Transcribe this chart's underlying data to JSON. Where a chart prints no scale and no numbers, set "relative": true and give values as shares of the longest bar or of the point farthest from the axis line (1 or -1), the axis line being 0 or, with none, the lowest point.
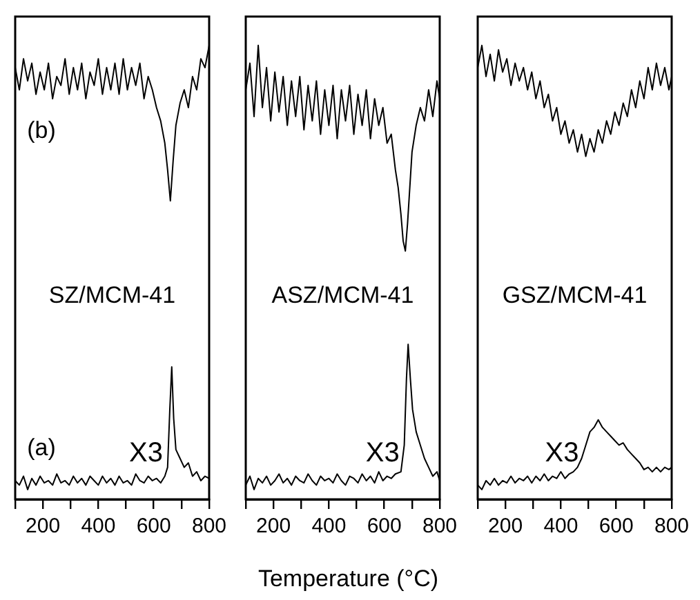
{
  "chart_data": [
    {
      "type": "line",
      "xlim": [
        100,
        800
      ],
      "xticks": [
        {
          "value": 100,
          "label": null
        },
        200,
        {
          "value": 300,
          "label": null
        },
        400,
        {
          "value": 500,
          "label": null
        },
        600,
        {
          "value": 700,
          "label": null
        },
        800
      ],
      "relative": true,
      "title": "SZ/MCM-41",
      "annotations": [
        "X3"
      ],
      "series": [
        {
          "name": "(b)",
          "color": "#000000",
          "x": [
            100,
            115,
            130,
            145,
            160,
            175,
            190,
            205,
            220,
            235,
            250,
            265,
            280,
            295,
            310,
            325,
            340,
            355,
            370,
            385,
            400,
            415,
            430,
            445,
            460,
            475,
            490,
            505,
            520,
            535,
            550,
            565,
            580,
            595,
            610,
            625,
            640,
            650,
            660,
            670,
            680,
            695,
            710,
            725,
            740,
            755,
            770,
            785,
            800
          ],
          "values": [
            0.95,
            0.9,
            0.97,
            0.92,
            0.96,
            0.89,
            0.94,
            0.9,
            0.96,
            0.88,
            0.93,
            0.91,
            0.97,
            0.89,
            0.95,
            0.9,
            0.96,
            0.88,
            0.94,
            0.91,
            0.97,
            0.89,
            0.95,
            0.9,
            0.96,
            0.89,
            0.97,
            0.9,
            0.95,
            0.91,
            0.96,
            0.88,
            0.93,
            0.9,
            0.86,
            0.83,
            0.78,
            0.72,
            0.65,
            0.74,
            0.82,
            0.87,
            0.9,
            0.86,
            0.93,
            0.9,
            0.97,
            0.95,
            1.0
          ]
        },
        {
          "name": "(a)",
          "color": "#000000",
          "x": [
            100,
            115,
            130,
            145,
            160,
            175,
            190,
            205,
            220,
            235,
            250,
            265,
            280,
            295,
            310,
            325,
            340,
            355,
            370,
            385,
            400,
            415,
            430,
            445,
            460,
            475,
            490,
            505,
            520,
            535,
            550,
            565,
            580,
            595,
            610,
            625,
            640,
            650,
            658,
            665,
            672,
            680,
            695,
            710,
            725,
            740,
            755,
            770,
            785,
            800
          ],
          "values": [
            0.02,
            0.01,
            0.03,
            0.0,
            0.025,
            0.01,
            0.03,
            0.015,
            0.02,
            0.01,
            0.035,
            0.015,
            0.02,
            0.01,
            0.03,
            0.015,
            0.025,
            0.01,
            0.03,
            0.02,
            0.01,
            0.03,
            0.015,
            0.025,
            0.01,
            0.03,
            0.015,
            0.02,
            0.01,
            0.035,
            0.02,
            0.015,
            0.03,
            0.02,
            0.025,
            0.015,
            0.03,
            0.05,
            0.18,
            0.276,
            0.16,
            0.09,
            0.07,
            0.05,
            0.06,
            0.03,
            0.04,
            0.02,
            0.03,
            0.025
          ]
        }
      ]
    },
    {
      "type": "line",
      "xlabel": "Temperature (°C)",
      "xlim": [
        100,
        800
      ],
      "xticks": [
        {
          "value": 100,
          "label": null
        },
        200,
        {
          "value": 300,
          "label": null
        },
        400,
        {
          "value": 500,
          "label": null
        },
        600,
        {
          "value": 700,
          "label": null
        },
        800
      ],
      "relative": true,
      "title": "ASZ/MCM-41",
      "annotations": [
        "X3"
      ],
      "series": [
        {
          "color": "#000000",
          "x": [
            100,
            115,
            130,
            145,
            160,
            175,
            190,
            205,
            220,
            235,
            250,
            265,
            280,
            295,
            310,
            325,
            340,
            355,
            370,
            385,
            400,
            415,
            430,
            445,
            460,
            475,
            490,
            505,
            520,
            535,
            550,
            565,
            580,
            595,
            610,
            625,
            640,
            650,
            660,
            668,
            676,
            684,
            692,
            700,
            715,
            730,
            745,
            760,
            775,
            790,
            800
          ],
          "values": [
            0.9,
            0.96,
            0.84,
            1.0,
            0.86,
            0.95,
            0.83,
            0.94,
            0.85,
            0.93,
            0.82,
            0.92,
            0.84,
            0.93,
            0.81,
            0.91,
            0.83,
            0.92,
            0.8,
            0.9,
            0.82,
            0.91,
            0.79,
            0.9,
            0.83,
            0.91,
            0.8,
            0.89,
            0.82,
            0.9,
            0.79,
            0.88,
            0.82,
            0.86,
            0.78,
            0.8,
            0.72,
            0.68,
            0.62,
            0.56,
            0.537,
            0.6,
            0.68,
            0.76,
            0.82,
            0.86,
            0.83,
            0.9,
            0.84,
            0.92,
            0.88
          ]
        },
        {
          "color": "#000000",
          "x": [
            100,
            115,
            130,
            145,
            160,
            175,
            190,
            205,
            220,
            235,
            250,
            265,
            280,
            295,
            310,
            325,
            340,
            355,
            370,
            385,
            400,
            415,
            430,
            445,
            460,
            475,
            490,
            505,
            520,
            535,
            550,
            565,
            580,
            595,
            610,
            625,
            640,
            660,
            672,
            680,
            686,
            694,
            702,
            715,
            730,
            745,
            760,
            775,
            790,
            800
          ],
          "values": [
            0.01,
            0.03,
            0.0,
            0.025,
            0.015,
            0.03,
            0.01,
            0.02,
            0.035,
            0.015,
            0.025,
            0.01,
            0.03,
            0.02,
            0.015,
            0.035,
            0.02,
            0.01,
            0.03,
            0.02,
            0.025,
            0.015,
            0.035,
            0.02,
            0.01,
            0.03,
            0.025,
            0.015,
            0.035,
            0.02,
            0.03,
            0.015,
            0.04,
            0.02,
            0.03,
            0.025,
            0.035,
            0.04,
            0.1,
            0.25,
            0.327,
            0.25,
            0.18,
            0.13,
            0.1,
            0.07,
            0.05,
            0.03,
            0.04,
            0.02
          ]
        }
      ]
    },
    {
      "type": "line",
      "xlim": [
        100,
        800
      ],
      "xticks": [
        {
          "value": 100,
          "label": null
        },
        200,
        {
          "value": 300,
          "label": null
        },
        400,
        {
          "value": 500,
          "label": null
        },
        600,
        {
          "value": 700,
          "label": null
        },
        800
      ],
      "relative": true,
      "title": "GSZ/MCM-41",
      "annotations": [
        "X3"
      ],
      "series": [
        {
          "color": "#000000",
          "x": [
            100,
            115,
            130,
            145,
            160,
            175,
            190,
            205,
            220,
            235,
            250,
            265,
            280,
            295,
            310,
            325,
            340,
            355,
            370,
            385,
            400,
            415,
            430,
            445,
            460,
            475,
            490,
            505,
            520,
            535,
            550,
            565,
            580,
            595,
            610,
            625,
            640,
            655,
            670,
            685,
            700,
            715,
            730,
            745,
            760,
            775,
            790,
            800
          ],
          "values": [
            0.95,
            1.0,
            0.93,
            0.98,
            0.92,
            0.99,
            0.94,
            0.97,
            0.91,
            0.96,
            0.92,
            0.95,
            0.9,
            0.94,
            0.88,
            0.92,
            0.86,
            0.89,
            0.83,
            0.86,
            0.8,
            0.83,
            0.78,
            0.81,
            0.76,
            0.8,
            0.75,
            0.79,
            0.76,
            0.81,
            0.78,
            0.83,
            0.8,
            0.85,
            0.82,
            0.87,
            0.84,
            0.9,
            0.86,
            0.92,
            0.88,
            0.95,
            0.9,
            0.96,
            0.91,
            0.95,
            0.9,
            0.93
          ]
        },
        {
          "color": "#000000",
          "x": [
            100,
            115,
            130,
            145,
            160,
            175,
            190,
            205,
            220,
            235,
            250,
            265,
            280,
            295,
            310,
            325,
            340,
            355,
            370,
            385,
            400,
            415,
            430,
            445,
            460,
            475,
            490,
            505,
            520,
            535,
            550,
            565,
            580,
            595,
            610,
            625,
            640,
            655,
            670,
            685,
            700,
            715,
            730,
            745,
            760,
            775,
            790,
            800
          ],
          "values": [
            0.01,
            0.0,
            0.02,
            0.01,
            0.025,
            0.01,
            0.02,
            0.015,
            0.03,
            0.015,
            0.025,
            0.02,
            0.03,
            0.015,
            0.03,
            0.02,
            0.035,
            0.02,
            0.03,
            0.025,
            0.04,
            0.025,
            0.035,
            0.04,
            0.05,
            0.07,
            0.1,
            0.13,
            0.14,
            0.157,
            0.14,
            0.13,
            0.12,
            0.11,
            0.1,
            0.105,
            0.09,
            0.08,
            0.07,
            0.06,
            0.045,
            0.05,
            0.04,
            0.05,
            0.04,
            0.05,
            0.045,
            0.05
          ]
        }
      ]
    }
  ]
}
